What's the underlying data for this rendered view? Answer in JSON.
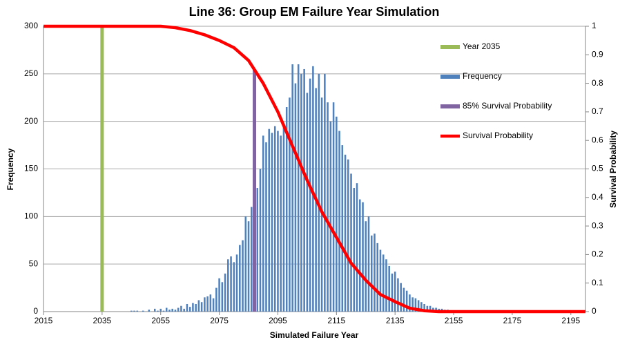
{
  "chart_data": {
    "type": "combo",
    "title": "Line 36: Group EM Failure Year Simulation",
    "x_label": "Simulated Failure Year",
    "y_label": "Frequency",
    "y2_label": "Survival Probability",
    "xlim": [
      2015,
      2200
    ],
    "xticks": [
      2015,
      2035,
      2055,
      2075,
      2095,
      2115,
      2135,
      2155,
      2175,
      2195
    ],
    "ylim": [
      0,
      300
    ],
    "yticks": [
      0,
      50,
      100,
      150,
      200,
      250,
      300
    ],
    "y2lim": [
      0,
      1
    ],
    "y2ticks": [
      0,
      0.1,
      0.2,
      0.3,
      0.4,
      0.5,
      0.6,
      0.7,
      0.8,
      0.9,
      1
    ],
    "grid": true,
    "legend": "right",
    "series": [
      {
        "name": "Year 2035",
        "type": "vline",
        "color": "#9bbb59",
        "x": [
          2035
        ],
        "values": [
          300
        ]
      },
      {
        "name": "Frequency",
        "type": "bar",
        "color": "#4f81bd",
        "x": [
          2045,
          2046,
          2047,
          2048,
          2049,
          2050,
          2051,
          2052,
          2053,
          2054,
          2055,
          2056,
          2057,
          2058,
          2059,
          2060,
          2061,
          2062,
          2063,
          2064,
          2065,
          2066,
          2067,
          2068,
          2069,
          2070,
          2071,
          2072,
          2073,
          2074,
          2075,
          2076,
          2077,
          2078,
          2079,
          2080,
          2081,
          2082,
          2083,
          2084,
          2085,
          2086,
          2087,
          2088,
          2089,
          2090,
          2091,
          2092,
          2093,
          2094,
          2095,
          2096,
          2097,
          2098,
          2099,
          2100,
          2101,
          2102,
          2103,
          2104,
          2105,
          2106,
          2107,
          2108,
          2109,
          2110,
          2111,
          2112,
          2113,
          2114,
          2115,
          2116,
          2117,
          2118,
          2119,
          2120,
          2121,
          2122,
          2123,
          2124,
          2125,
          2126,
          2127,
          2128,
          2129,
          2130,
          2131,
          2132,
          2133,
          2134,
          2135,
          2136,
          2137,
          2138,
          2139,
          2140,
          2141,
          2142,
          2143,
          2144,
          2145,
          2146,
          2147,
          2148,
          2149,
          2150,
          2151,
          2152,
          2153,
          2154,
          2155
        ],
        "values": [
          1,
          1,
          1,
          0,
          1,
          0,
          2,
          0,
          3,
          1,
          3,
          1,
          4,
          2,
          3,
          2,
          4,
          6,
          3,
          8,
          5,
          9,
          8,
          12,
          10,
          15,
          16,
          18,
          14,
          25,
          35,
          31,
          40,
          55,
          58,
          52,
          60,
          70,
          75,
          100,
          95,
          110,
          125,
          130,
          150,
          185,
          178,
          192,
          188,
          195,
          190,
          185,
          198,
          215,
          225,
          260,
          240,
          260,
          250,
          255,
          230,
          245,
          258,
          235,
          250,
          225,
          250,
          220,
          200,
          220,
          205,
          190,
          175,
          165,
          160,
          145,
          130,
          135,
          118,
          115,
          95,
          100,
          80,
          82,
          72,
          65,
          60,
          55,
          48,
          40,
          42,
          35,
          30,
          25,
          22,
          18,
          15,
          14,
          12,
          10,
          8,
          6,
          6,
          4,
          4,
          3,
          3,
          2,
          2,
          1,
          1
        ]
      },
      {
        "name": "85% Survival Probability",
        "type": "vline",
        "color": "#8064a2",
        "axis": "y2",
        "x": [
          2087
        ],
        "values": [
          0.85
        ]
      },
      {
        "name": "Survival Probability",
        "type": "line",
        "color": "#ff0000",
        "axis": "y2",
        "x": [
          2015,
          2055,
          2060,
          2065,
          2070,
          2075,
          2080,
          2085,
          2090,
          2095,
          2100,
          2105,
          2110,
          2115,
          2120,
          2125,
          2130,
          2135,
          2140,
          2145,
          2150,
          2200
        ],
        "values": [
          1,
          1,
          0.995,
          0.985,
          0.97,
          0.95,
          0.925,
          0.88,
          0.8,
          0.7,
          0.58,
          0.46,
          0.35,
          0.26,
          0.17,
          0.11,
          0.06,
          0.035,
          0.012,
          0.003,
          0,
          0
        ]
      }
    ]
  }
}
